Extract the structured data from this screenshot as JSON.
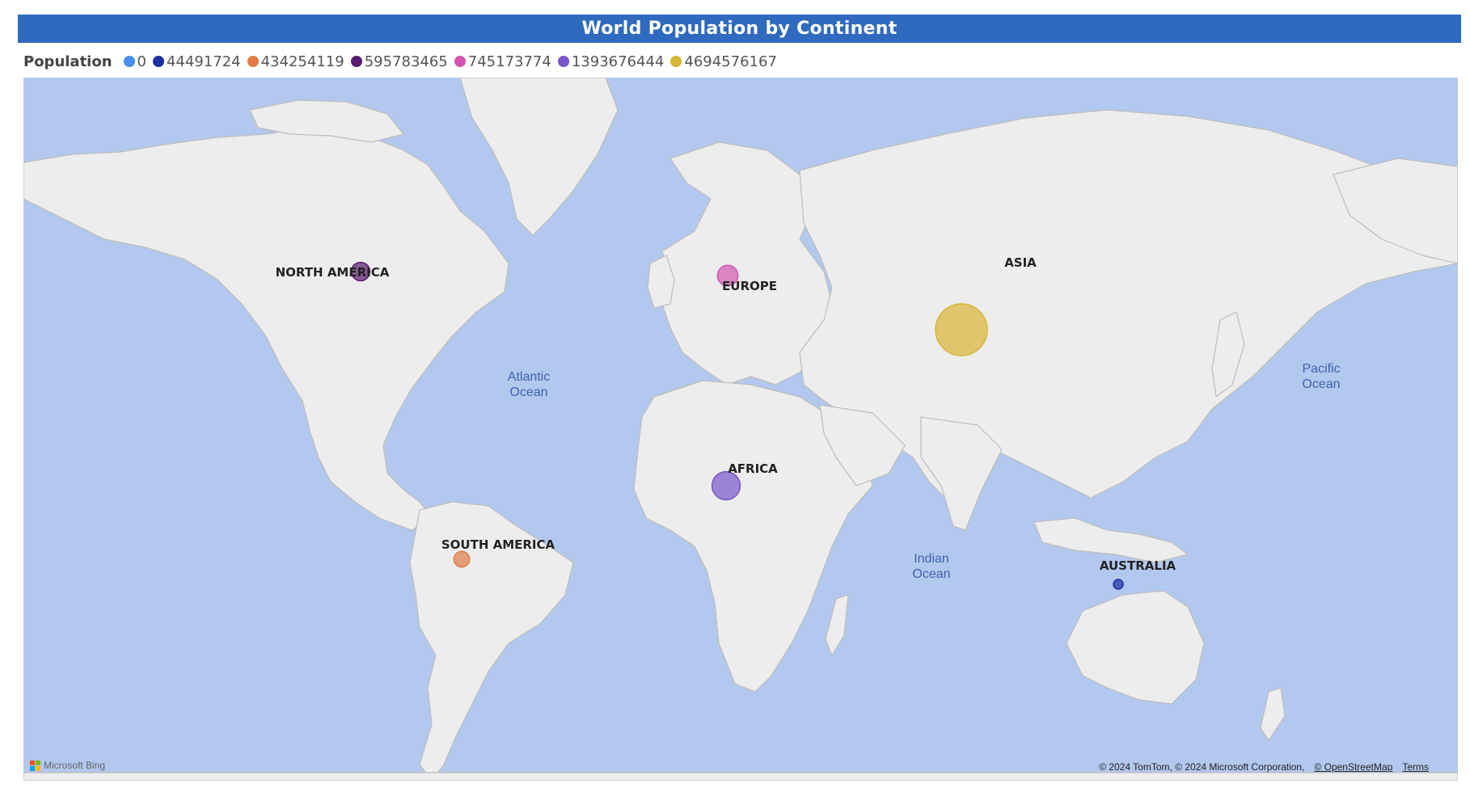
{
  "title": "World Population by Continent",
  "legend": {
    "title": "Population",
    "items": [
      {
        "label": "0",
        "color": "#4a8ef0"
      },
      {
        "label": "44491724",
        "color": "#1a2fa0"
      },
      {
        "label": "434254119",
        "color": "#e07a45"
      },
      {
        "label": "595783465",
        "color": "#5a1a70"
      },
      {
        "label": "745173774",
        "color": "#d455b0"
      },
      {
        "label": "1393676444",
        "color": "#7a55c8"
      },
      {
        "label": "4694576167",
        "color": "#d8b535"
      }
    ]
  },
  "map": {
    "ocean_labels": [
      {
        "line1": "Atlantic",
        "line2": "Ocean"
      },
      {
        "line1": "Pacific",
        "line2": "Ocean"
      },
      {
        "line1": "Indian",
        "line2": "Ocean"
      }
    ],
    "continents": [
      {
        "name": "NORTH AMERICA",
        "population": 595783465,
        "color": "#5a1a70"
      },
      {
        "name": "EUROPE",
        "population": 745173774,
        "color": "#d455b0"
      },
      {
        "name": "ASIA",
        "population": 4694576167,
        "color": "#d8b535"
      },
      {
        "name": "AFRICA",
        "population": 1393676444,
        "color": "#7a55c8"
      },
      {
        "name": "SOUTH AMERICA",
        "population": 434254119,
        "color": "#e07a45"
      },
      {
        "name": "AUSTRALIA",
        "population": 44491724,
        "color": "#1a2fa0"
      }
    ]
  },
  "attribution": {
    "text": "© 2024 TomTom, © 2024 Microsoft Corporation,",
    "osm": "© OpenStreetMap",
    "terms": "Terms"
  },
  "bing": {
    "label": "Microsoft Bing"
  }
}
